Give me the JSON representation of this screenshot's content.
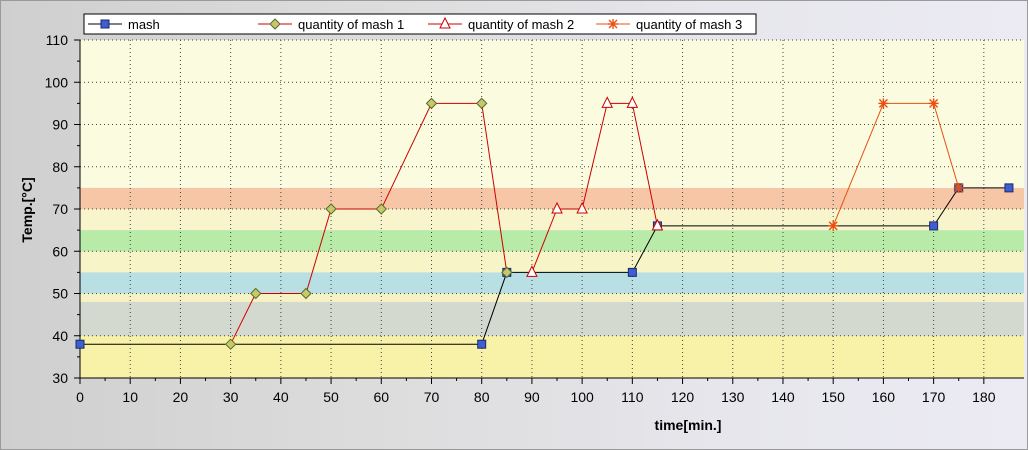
{
  "chart_data": {
    "type": "line",
    "xlabel": "time[min.]",
    "ylabel": "Temp.[°C]",
    "xlim": [
      0,
      188
    ],
    "ylim": [
      30,
      110
    ],
    "x_ticks": [
      "0",
      "10",
      "20",
      "30",
      "40",
      "50",
      "60",
      "70",
      "80",
      "90",
      "100",
      "110",
      "120",
      "130",
      "140",
      "150",
      "160",
      "170",
      "180"
    ],
    "y_ticks": [
      "30",
      "40",
      "50",
      "60",
      "70",
      "80",
      "90",
      "100",
      "110"
    ],
    "grid": "dotted",
    "legend_position": "top",
    "bands": [
      {
        "from": 30,
        "to": 40,
        "color": "#f8f1a8"
      },
      {
        "from": 40,
        "to": 48,
        "color": "#d4d9d0"
      },
      {
        "from": 48,
        "to": 50,
        "color": "#f6f2c4"
      },
      {
        "from": 50,
        "to": 55,
        "color": "#b8dfe4"
      },
      {
        "from": 55,
        "to": 60,
        "color": "#f7f4c8"
      },
      {
        "from": 60,
        "to": 65,
        "color": "#b8eaa8"
      },
      {
        "from": 65,
        "to": 70,
        "color": "#f8f5cc"
      },
      {
        "from": 70,
        "to": 75,
        "color": "#f6c6a6"
      },
      {
        "from": 75,
        "to": 110,
        "color": "#fbfbe0"
      }
    ],
    "series": [
      {
        "name": "mash",
        "color": "#000000",
        "marker": "square",
        "marker_color": "#3f5fd0",
        "points": [
          [
            0,
            38
          ],
          [
            80,
            38
          ],
          [
            85,
            55
          ],
          [
            110,
            55
          ],
          [
            115,
            66
          ],
          [
            170,
            66
          ],
          [
            175,
            75
          ],
          [
            185,
            75
          ]
        ]
      },
      {
        "name": "quantity of mash 1",
        "color": "#cc0000",
        "marker": "diamond",
        "marker_color": "#c8c86a",
        "points": [
          [
            30,
            38
          ],
          [
            35,
            50
          ],
          [
            45,
            50
          ],
          [
            50,
            70
          ],
          [
            60,
            70
          ],
          [
            70,
            95
          ],
          [
            80,
            95
          ],
          [
            85,
            55
          ]
        ]
      },
      {
        "name": "quantity of mash 2",
        "color": "#cc0000",
        "marker": "triangle",
        "marker_color": "#ffffff",
        "points": [
          [
            90,
            55
          ],
          [
            95,
            70
          ],
          [
            100,
            70
          ],
          [
            105,
            95
          ],
          [
            110,
            95
          ],
          [
            115,
            66
          ]
        ]
      },
      {
        "name": "quantity of mash 3",
        "color": "#e85010",
        "marker": "star",
        "marker_color": "#e85010",
        "points": [
          [
            150,
            66
          ],
          [
            160,
            95
          ],
          [
            170,
            95
          ],
          [
            175,
            75
          ]
        ]
      }
    ]
  }
}
